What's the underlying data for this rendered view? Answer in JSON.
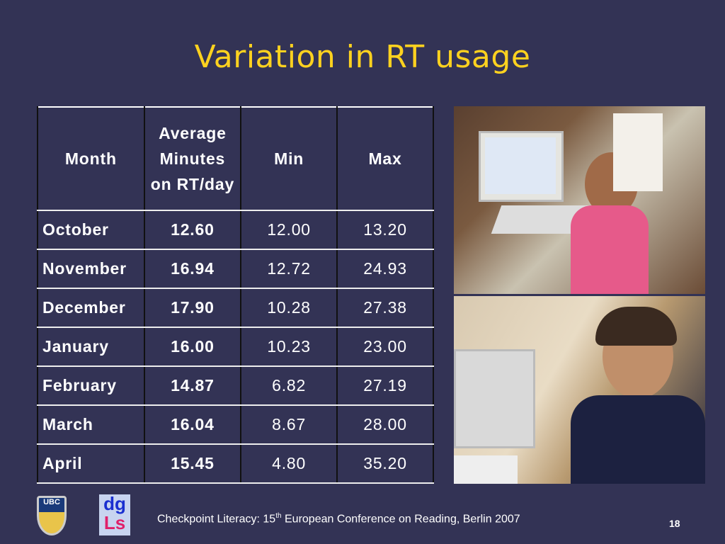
{
  "title": "Variation in RT usage",
  "table": {
    "headers": [
      "Month",
      "Average Minutes on RT/day",
      "Min",
      "Max"
    ],
    "rows": [
      [
        "October",
        "12.60",
        "12.00",
        "13.20"
      ],
      [
        "November",
        "16.94",
        "12.72",
        "24.93"
      ],
      [
        "December",
        "17.90",
        "10.28",
        "27.38"
      ],
      [
        "January",
        "16.00",
        "10.23",
        "23.00"
      ],
      [
        "February",
        "14.87",
        "6.82",
        "27.19"
      ],
      [
        "March",
        "16.04",
        "8.67",
        "28.00"
      ],
      [
        "April",
        "15.45",
        "4.80",
        "35.20"
      ]
    ]
  },
  "footer": {
    "pre": "Checkpoint Literacy: 15",
    "sup": "th",
    "post": " European Conference on Reading, Berlin 2007"
  },
  "page_number": "18",
  "logos": {
    "ubc": "UBC",
    "dgls_top": "dg",
    "dgls_bottom": "Ls"
  },
  "colors": {
    "background": "#333355",
    "title": "#ffd21f"
  }
}
